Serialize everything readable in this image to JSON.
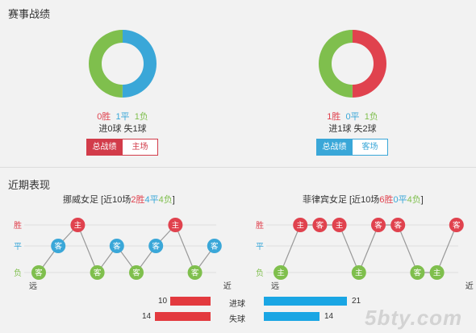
{
  "sections": {
    "record_title": "赛事战绩",
    "recent_title": "近期表现"
  },
  "colors": {
    "win": "#e0424e",
    "draw": "#3aa7d8",
    "loss": "#7fbf4d"
  },
  "left_team": {
    "donut": {
      "win": 0,
      "draw": 1,
      "loss": 1
    },
    "record": {
      "win": "0胜",
      "draw": "1平",
      "loss": "1负"
    },
    "goals": "进0球 失1球",
    "tabs": [
      "总战绩",
      "主场"
    ],
    "active_tab": 0,
    "recent": {
      "name": "挪威女足",
      "prefix": " [近10场",
      "wins": "2胜",
      "draws": "4平",
      "losses": "4负",
      "suffix": "]",
      "matches": [
        {
          "result": "L",
          "venue": "客"
        },
        {
          "result": "D",
          "venue": "客"
        },
        {
          "result": "W",
          "venue": "主"
        },
        {
          "result": "L",
          "venue": "客"
        },
        {
          "result": "D",
          "venue": "客"
        },
        {
          "result": "L",
          "venue": "客"
        },
        {
          "result": "D",
          "venue": "客"
        },
        {
          "result": "W",
          "venue": "主"
        },
        {
          "result": "L",
          "venue": "客"
        },
        {
          "result": "D",
          "venue": "客"
        }
      ]
    }
  },
  "right_team": {
    "donut": {
      "win": 1,
      "draw": 0,
      "loss": 1
    },
    "record": {
      "win": "1胜",
      "draw": "0平",
      "loss": "1负"
    },
    "goals": "进1球 失2球",
    "tabs": [
      "总战绩",
      "客场"
    ],
    "active_tab": 0,
    "recent": {
      "name": "菲律宾女足",
      "prefix": " [近10场",
      "wins": "6胜",
      "draws": "0平",
      "losses": "4负",
      "suffix": "]",
      "matches": [
        {
          "result": "L",
          "venue": "主"
        },
        {
          "result": "W",
          "venue": "主"
        },
        {
          "result": "W",
          "venue": "客"
        },
        {
          "result": "W",
          "venue": "主"
        },
        {
          "result": "L",
          "venue": "主"
        },
        {
          "result": "W",
          "venue": "客"
        },
        {
          "result": "W",
          "venue": "客"
        },
        {
          "result": "L",
          "venue": "客"
        },
        {
          "result": "L",
          "venue": "主"
        },
        {
          "result": "W",
          "venue": "客"
        }
      ]
    }
  },
  "axis": {
    "win": "胜",
    "draw": "平",
    "loss": "负",
    "far": "远",
    "near": "近"
  },
  "goals_compare": {
    "scored": {
      "label": "进球",
      "left": 10,
      "right": 21
    },
    "conceded": {
      "label": "失球",
      "left": 14,
      "right": 14
    }
  },
  "watermark": "5bty.com"
}
